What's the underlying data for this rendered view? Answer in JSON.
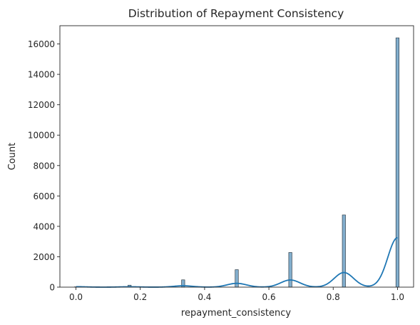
{
  "chart_data": {
    "type": "bar",
    "title": "Distribution of Repayment Consistency",
    "xlabel": "repayment_consistency",
    "ylabel": "Count",
    "xlim": [
      -0.05,
      1.05
    ],
    "ylim": [
      0,
      17200
    ],
    "xticks": [
      "0.0",
      "0.2",
      "0.4",
      "0.6",
      "0.8",
      "1.0"
    ],
    "yticks": [
      "0",
      "2000",
      "4000",
      "6000",
      "8000",
      "10000",
      "12000",
      "14000",
      "16000"
    ],
    "bin_width": 0.01,
    "series": [
      {
        "kind": "histogram",
        "bins": [
          {
            "x": 0.0,
            "value": 20
          },
          {
            "x": 0.1667,
            "value": 130
          },
          {
            "x": 0.3333,
            "value": 480
          },
          {
            "x": 0.5,
            "value": 1150
          },
          {
            "x": 0.6667,
            "value": 2280
          },
          {
            "x": 0.8333,
            "value": 4750
          },
          {
            "x": 1.0,
            "value": 16400
          }
        ]
      },
      {
        "kind": "kde",
        "peaks": [
          {
            "x": 0.0,
            "value": 30,
            "width": 0.03
          },
          {
            "x": 0.1667,
            "value": 25,
            "width": 0.03
          },
          {
            "x": 0.3333,
            "value": 90,
            "width": 0.03
          },
          {
            "x": 0.5,
            "value": 250,
            "width": 0.03
          },
          {
            "x": 0.6667,
            "value": 470,
            "width": 0.03
          },
          {
            "x": 0.8333,
            "value": 960,
            "width": 0.03
          },
          {
            "x": 1.0,
            "value": 3250,
            "width": 0.03
          }
        ]
      }
    ],
    "colors": {
      "bar_fill": "#82aecd",
      "bar_edge": "#1f2a33",
      "kde_line": "#1f77b4"
    },
    "grid": false
  }
}
